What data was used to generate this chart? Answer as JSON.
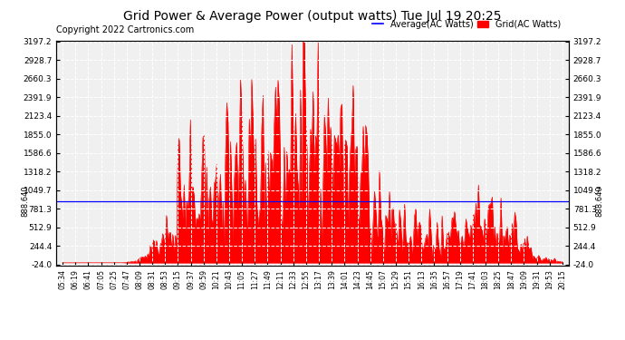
{
  "title": "Grid Power & Average Power (output watts) Tue Jul 19 20:25",
  "copyright": "Copyright 2022 Cartronics.com",
  "legend_labels": [
    "Average(AC Watts)",
    "Grid(AC Watts)"
  ],
  "legend_colors": [
    "blue",
    "red"
  ],
  "yticks": [
    -24.0,
    244.4,
    512.9,
    781.3,
    1049.7,
    1318.2,
    1586.6,
    1855.0,
    2123.4,
    2391.9,
    2660.3,
    2928.7,
    3197.2
  ],
  "ymin": -24.0,
  "ymax": 3197.2,
  "avg_line": 888.64,
  "avg_line_color": "blue",
  "fill_color": "red",
  "background_color": "white",
  "grid_color": "#bbbbbb",
  "title_fontsize": 10,
  "copyright_fontsize": 7,
  "xtick_labels": [
    "05:34",
    "06:19",
    "06:41",
    "07:05",
    "07:25",
    "07:47",
    "08:09",
    "08:31",
    "08:53",
    "09:15",
    "09:37",
    "09:59",
    "10:21",
    "10:43",
    "11:05",
    "11:27",
    "11:49",
    "12:11",
    "12:33",
    "12:55",
    "13:17",
    "13:39",
    "14:01",
    "14:23",
    "14:45",
    "15:07",
    "15:29",
    "15:51",
    "16:13",
    "16:35",
    "16:57",
    "17:19",
    "17:41",
    "18:03",
    "18:25",
    "18:47",
    "19:09",
    "19:31",
    "19:53",
    "20:15"
  ],
  "n_points": 400,
  "figsize": [
    6.9,
    3.75
  ],
  "dpi": 100
}
